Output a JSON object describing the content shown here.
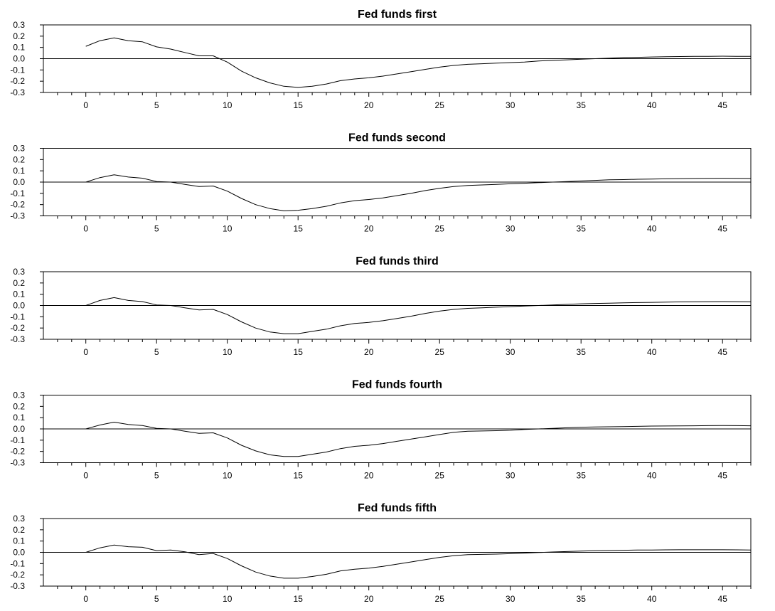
{
  "chart_data": [
    {
      "type": "line",
      "title": "Fed funds first",
      "xlim": [
        -3,
        47
      ],
      "ylim": [
        -0.3,
        0.3
      ],
      "xticks": [
        0,
        5,
        10,
        15,
        20,
        25,
        30,
        35,
        40,
        45
      ],
      "xtick_labels": [
        "0",
        "5",
        "10",
        "15",
        "20",
        "25",
        "30",
        "35",
        "40",
        "45"
      ],
      "yticks": [
        -0.3,
        -0.2,
        -0.1,
        0.0,
        0.1,
        0.2,
        0.3
      ],
      "ytick_labels": [
        "-0.3",
        "-0.2",
        "-0.1",
        "0.0",
        "0.1",
        "0.2",
        "0.3"
      ],
      "reference_line_y": 0,
      "x": [
        0,
        1,
        2,
        3,
        4,
        5,
        6,
        7,
        8,
        9,
        10,
        11,
        12,
        13,
        14,
        15,
        16,
        17,
        18,
        19,
        20,
        21,
        22,
        23,
        24,
        25,
        26,
        27,
        28,
        29,
        30,
        31,
        32,
        33,
        34,
        35,
        36,
        37,
        38,
        39,
        40,
        41,
        42,
        43,
        44,
        45,
        46,
        47
      ],
      "y": [
        0.11,
        0.16,
        0.185,
        0.16,
        0.15,
        0.105,
        0.085,
        0.055,
        0.025,
        0.025,
        -0.03,
        -0.11,
        -0.17,
        -0.215,
        -0.245,
        -0.255,
        -0.245,
        -0.225,
        -0.195,
        -0.18,
        -0.17,
        -0.155,
        -0.135,
        -0.115,
        -0.095,
        -0.075,
        -0.06,
        -0.05,
        -0.045,
        -0.04,
        -0.035,
        -0.03,
        -0.02,
        -0.015,
        -0.01,
        -0.005,
        0.0,
        0.005,
        0.01,
        0.012,
        0.015,
        0.017,
        0.019,
        0.02,
        0.021,
        0.022,
        0.021,
        0.02
      ]
    },
    {
      "type": "line",
      "title": "Fed funds second",
      "xlim": [
        -3,
        47
      ],
      "ylim": [
        -0.3,
        0.3
      ],
      "xticks": [
        0,
        5,
        10,
        15,
        20,
        25,
        30,
        35,
        40,
        45
      ],
      "xtick_labels": [
        "0",
        "5",
        "10",
        "15",
        "20",
        "25",
        "30",
        "35",
        "40",
        "45"
      ],
      "yticks": [
        -0.3,
        -0.2,
        -0.1,
        0.0,
        0.1,
        0.2,
        0.3
      ],
      "ytick_labels": [
        "-0.3",
        "-0.2",
        "-0.1",
        "0.0",
        "0.1",
        "0.2",
        "0.3"
      ],
      "reference_line_y": 0,
      "x": [
        0,
        1,
        2,
        3,
        4,
        5,
        6,
        7,
        8,
        9,
        10,
        11,
        12,
        13,
        14,
        15,
        16,
        17,
        18,
        19,
        20,
        21,
        22,
        23,
        24,
        25,
        26,
        27,
        28,
        29,
        30,
        31,
        32,
        33,
        34,
        35,
        36,
        37,
        38,
        39,
        40,
        41,
        42,
        43,
        44,
        45,
        46,
        47
      ],
      "y": [
        0.0,
        0.04,
        0.065,
        0.045,
        0.035,
        0.005,
        0.0,
        -0.02,
        -0.04,
        -0.035,
        -0.08,
        -0.145,
        -0.2,
        -0.235,
        -0.255,
        -0.25,
        -0.235,
        -0.215,
        -0.185,
        -0.165,
        -0.155,
        -0.14,
        -0.12,
        -0.1,
        -0.075,
        -0.055,
        -0.04,
        -0.03,
        -0.025,
        -0.02,
        -0.015,
        -0.01,
        -0.005,
        0.0,
        0.005,
        0.01,
        0.015,
        0.02,
        0.022,
        0.025,
        0.027,
        0.029,
        0.031,
        0.032,
        0.033,
        0.034,
        0.033,
        0.032
      ]
    },
    {
      "type": "line",
      "title": "Fed funds third",
      "xlim": [
        -3,
        47
      ],
      "ylim": [
        -0.3,
        0.3
      ],
      "xticks": [
        0,
        5,
        10,
        15,
        20,
        25,
        30,
        35,
        40,
        45
      ],
      "xtick_labels": [
        "0",
        "5",
        "10",
        "15",
        "20",
        "25",
        "30",
        "35",
        "40",
        "45"
      ],
      "yticks": [
        -0.3,
        -0.2,
        -0.1,
        0.0,
        0.1,
        0.2,
        0.3
      ],
      "ytick_labels": [
        "-0.3",
        "-0.2",
        "-0.1",
        "0.0",
        "0.1",
        "0.2",
        "0.3"
      ],
      "reference_line_y": 0,
      "x": [
        0,
        1,
        2,
        3,
        4,
        5,
        6,
        7,
        8,
        9,
        10,
        11,
        12,
        13,
        14,
        15,
        16,
        17,
        18,
        19,
        20,
        21,
        22,
        23,
        24,
        25,
        26,
        27,
        28,
        29,
        30,
        31,
        32,
        33,
        34,
        35,
        36,
        37,
        38,
        39,
        40,
        41,
        42,
        43,
        44,
        45,
        46,
        47
      ],
      "y": [
        0.0,
        0.045,
        0.07,
        0.045,
        0.035,
        0.005,
        0.0,
        -0.02,
        -0.04,
        -0.035,
        -0.08,
        -0.145,
        -0.2,
        -0.235,
        -0.25,
        -0.25,
        -0.23,
        -0.21,
        -0.18,
        -0.16,
        -0.15,
        -0.135,
        -0.115,
        -0.095,
        -0.07,
        -0.05,
        -0.035,
        -0.025,
        -0.02,
        -0.015,
        -0.01,
        -0.005,
        0.0,
        0.005,
        0.01,
        0.015,
        0.018,
        0.021,
        0.024,
        0.026,
        0.028,
        0.03,
        0.032,
        0.033,
        0.034,
        0.035,
        0.034,
        0.033
      ]
    },
    {
      "type": "line",
      "title": "Fed funds fourth",
      "xlim": [
        -3,
        47
      ],
      "ylim": [
        -0.3,
        0.3
      ],
      "xticks": [
        0,
        5,
        10,
        15,
        20,
        25,
        30,
        35,
        40,
        45
      ],
      "xtick_labels": [
        "0",
        "5",
        "10",
        "15",
        "20",
        "25",
        "30",
        "35",
        "40",
        "45"
      ],
      "yticks": [
        -0.3,
        -0.2,
        -0.1,
        0.0,
        0.1,
        0.2,
        0.3
      ],
      "ytick_labels": [
        "-0.3",
        "-0.2",
        "-0.1",
        "0.0",
        "0.1",
        "0.2",
        "0.3"
      ],
      "reference_line_y": 0,
      "x": [
        0,
        1,
        2,
        3,
        4,
        5,
        6,
        7,
        8,
        9,
        10,
        11,
        12,
        13,
        14,
        15,
        16,
        17,
        18,
        19,
        20,
        21,
        22,
        23,
        24,
        25,
        26,
        27,
        28,
        29,
        30,
        31,
        32,
        33,
        34,
        35,
        36,
        37,
        38,
        39,
        40,
        41,
        42,
        43,
        44,
        45,
        46,
        47
      ],
      "y": [
        0.0,
        0.035,
        0.06,
        0.04,
        0.03,
        0.005,
        0.0,
        -0.02,
        -0.04,
        -0.035,
        -0.08,
        -0.145,
        -0.195,
        -0.23,
        -0.245,
        -0.245,
        -0.225,
        -0.205,
        -0.175,
        -0.155,
        -0.145,
        -0.13,
        -0.11,
        -0.09,
        -0.07,
        -0.05,
        -0.03,
        -0.02,
        -0.018,
        -0.016,
        -0.012,
        -0.005,
        0.0,
        0.005,
        0.01,
        0.015,
        0.017,
        0.019,
        0.021,
        0.023,
        0.025,
        0.026,
        0.027,
        0.028,
        0.029,
        0.03,
        0.029,
        0.028
      ]
    },
    {
      "type": "line",
      "title": "Fed funds fifth",
      "xlim": [
        -3,
        47
      ],
      "ylim": [
        -0.3,
        0.3
      ],
      "xticks": [
        0,
        5,
        10,
        15,
        20,
        25,
        30,
        35,
        40,
        45
      ],
      "xtick_labels": [
        "0",
        "5",
        "10",
        "15",
        "20",
        "25",
        "30",
        "35",
        "40",
        "45"
      ],
      "yticks": [
        -0.3,
        -0.2,
        -0.1,
        0.0,
        0.1,
        0.2,
        0.3
      ],
      "ytick_labels": [
        "-0.3",
        "-0.2",
        "-0.1",
        "0.0",
        "0.1",
        "0.2",
        "0.3"
      ],
      "reference_line_y": 0,
      "x": [
        0,
        1,
        2,
        3,
        4,
        5,
        6,
        7,
        8,
        9,
        10,
        11,
        12,
        13,
        14,
        15,
        16,
        17,
        18,
        19,
        20,
        21,
        22,
        23,
        24,
        25,
        26,
        27,
        28,
        29,
        30,
        31,
        32,
        33,
        34,
        35,
        36,
        37,
        38,
        39,
        40,
        41,
        42,
        43,
        44,
        45,
        46,
        47
      ],
      "y": [
        0.0,
        0.04,
        0.065,
        0.05,
        0.045,
        0.015,
        0.02,
        0.005,
        -0.02,
        -0.01,
        -0.055,
        -0.12,
        -0.175,
        -0.21,
        -0.23,
        -0.23,
        -0.215,
        -0.195,
        -0.165,
        -0.15,
        -0.14,
        -0.125,
        -0.105,
        -0.085,
        -0.065,
        -0.045,
        -0.03,
        -0.02,
        -0.018,
        -0.016,
        -0.012,
        -0.007,
        -0.002,
        0.003,
        0.007,
        0.011,
        0.014,
        0.016,
        0.018,
        0.02,
        0.021,
        0.022,
        0.023,
        0.023,
        0.023,
        0.023,
        0.022,
        0.021
      ]
    }
  ],
  "colors": {
    "line": "#000000",
    "axis": "#000000",
    "background": "#ffffff"
  }
}
